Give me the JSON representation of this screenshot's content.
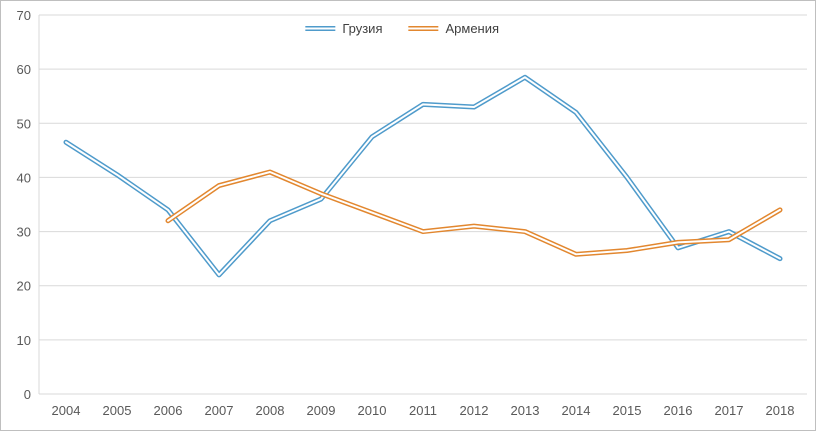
{
  "chart_data": {
    "type": "line",
    "title": "",
    "categories": [
      "2004",
      "2005",
      "2006",
      "2007",
      "2008",
      "2009",
      "2010",
      "2011",
      "2012",
      "2013",
      "2014",
      "2015",
      "2016",
      "2017",
      "2018"
    ],
    "series": [
      {
        "name": "Грузия",
        "color": "#4f9bcb",
        "values": [
          46.5,
          40.5,
          34,
          22,
          32,
          36,
          47.5,
          53.5,
          53,
          58.5,
          52,
          40,
          27,
          30,
          25
        ]
      },
      {
        "name": "Армения",
        "color": "#e2872f",
        "values": [
          null,
          null,
          32,
          38.5,
          41,
          37,
          33.5,
          30,
          31,
          30,
          25.8,
          26.5,
          28,
          28.5,
          34
        ]
      }
    ],
    "xlabel": "",
    "ylabel": "",
    "ylim": [
      0,
      70
    ],
    "y_ticks": [
      0,
      10,
      20,
      30,
      40,
      50,
      60,
      70
    ],
    "grid": true,
    "legend_position": "top-center",
    "gridline_color": "#d9d9d9",
    "tick_label_color": "#595959"
  }
}
